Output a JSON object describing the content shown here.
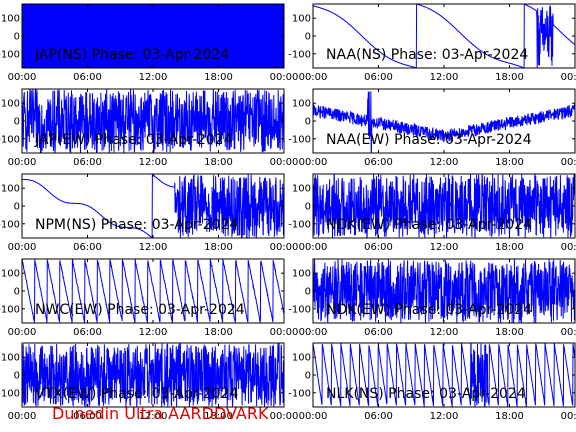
{
  "footer": "Dunedin Ultra AARDDVARK",
  "colors": {
    "trace": "#0000ff",
    "axis": "#000000",
    "footer": "#e60000"
  },
  "chart_data": [
    {
      "type": "line",
      "title": "JAP(NS) Phase: 03-Apr-2024",
      "pattern": "solid",
      "xlim": [
        0,
        24
      ],
      "ylim": [
        -180,
        180
      ],
      "xticklabels": [
        "00:00",
        "06:00",
        "12:00",
        "18:00",
        "00:00"
      ],
      "yticklabels": [
        "100",
        "0",
        "-100"
      ]
    },
    {
      "type": "line",
      "title": "NAA(NS) Phase: 03-Apr-2024",
      "pattern": "wrap_drift",
      "xlim": [
        0,
        24
      ],
      "ylim": [
        -180,
        180
      ],
      "xticklabels": [
        "00:00",
        "06:00",
        "12:00",
        "18:00",
        "00:00"
      ],
      "yticklabels": [
        "100",
        "0",
        "-100"
      ]
    },
    {
      "type": "line",
      "title": "JAP(EW) Phase: 03-Apr-2024",
      "pattern": "dense_gaps",
      "xlim": [
        0,
        24
      ],
      "ylim": [
        -180,
        180
      ],
      "xticklabels": [
        "00:00",
        "06:00",
        "12:00",
        "18:00",
        "00:00"
      ],
      "yticklabels": [
        "100",
        "0",
        "-100"
      ]
    },
    {
      "type": "line",
      "title": "NAA(EW) Phase: 03-Apr-2024",
      "pattern": "v_shape",
      "xlim": [
        0,
        24
      ],
      "ylim": [
        -180,
        180
      ],
      "xticklabels": [
        "00:00",
        "06:00",
        "12:00",
        "18:00",
        "00:00"
      ],
      "yticklabels": [
        "100",
        "0",
        "-100"
      ]
    },
    {
      "type": "line",
      "title": "NPM(NS) Phase: 03-Apr-2024",
      "pattern": "descending_then_noise",
      "xlim": [
        0,
        24
      ],
      "ylim": [
        -180,
        180
      ],
      "xticklabels": [
        "00:00",
        "06:00",
        "12:00",
        "18:00",
        "00:00"
      ],
      "yticklabels": [
        "100",
        "0",
        "-100"
      ]
    },
    {
      "type": "line",
      "title": "NDK(EW) Phase: 03-Apr-2024",
      "pattern": "noise",
      "xlim": [
        0,
        24
      ],
      "ylim": [
        -180,
        180
      ],
      "xticklabels": [
        "00:00",
        "06:00",
        "12:00",
        "18:00",
        "00:00"
      ],
      "yticklabels": [
        "100",
        "0",
        "-100"
      ]
    },
    {
      "type": "line",
      "title": "NWC(EW) Phase: 03-Apr-2024",
      "pattern": "sawtooth_down",
      "xlim": [
        0,
        24
      ],
      "ylim": [
        -180,
        180
      ],
      "xticklabels": [
        "00:00",
        "06:00",
        "12:00",
        "18:00",
        "00:00"
      ],
      "yticklabels": [
        "100",
        "0",
        "-100"
      ]
    },
    {
      "type": "line",
      "title": "NDK(EW) Phase: 03-Apr-2024",
      "pattern": "noise",
      "xlim": [
        0,
        24
      ],
      "ylim": [
        -180,
        180
      ],
      "xticklabels": [
        "00:00",
        "06:00",
        "12:00",
        "18:00",
        "00:00"
      ],
      "yticklabels": [
        "100",
        "0",
        "-100"
      ]
    },
    {
      "type": "line",
      "title": "VTX(EW) Phase: 03-Apr-2024",
      "pattern": "noise",
      "xlim": [
        0,
        24
      ],
      "ylim": [
        -180,
        180
      ],
      "xticklabels": [
        "00:00",
        "06:00",
        "12:00",
        "18:00",
        "00:00"
      ],
      "yticklabels": [
        "100",
        "0",
        "-100"
      ]
    },
    {
      "type": "line",
      "title": "NLK(NS) Phase: 03-Apr-2024",
      "pattern": "sawtooth_fast",
      "xlim": [
        0,
        24
      ],
      "ylim": [
        -180,
        180
      ],
      "xticklabels": [
        "00:00",
        "06:00",
        "12:00",
        "18:00",
        "00:00"
      ],
      "yticklabels": [
        "100",
        "0",
        "-100"
      ]
    }
  ]
}
